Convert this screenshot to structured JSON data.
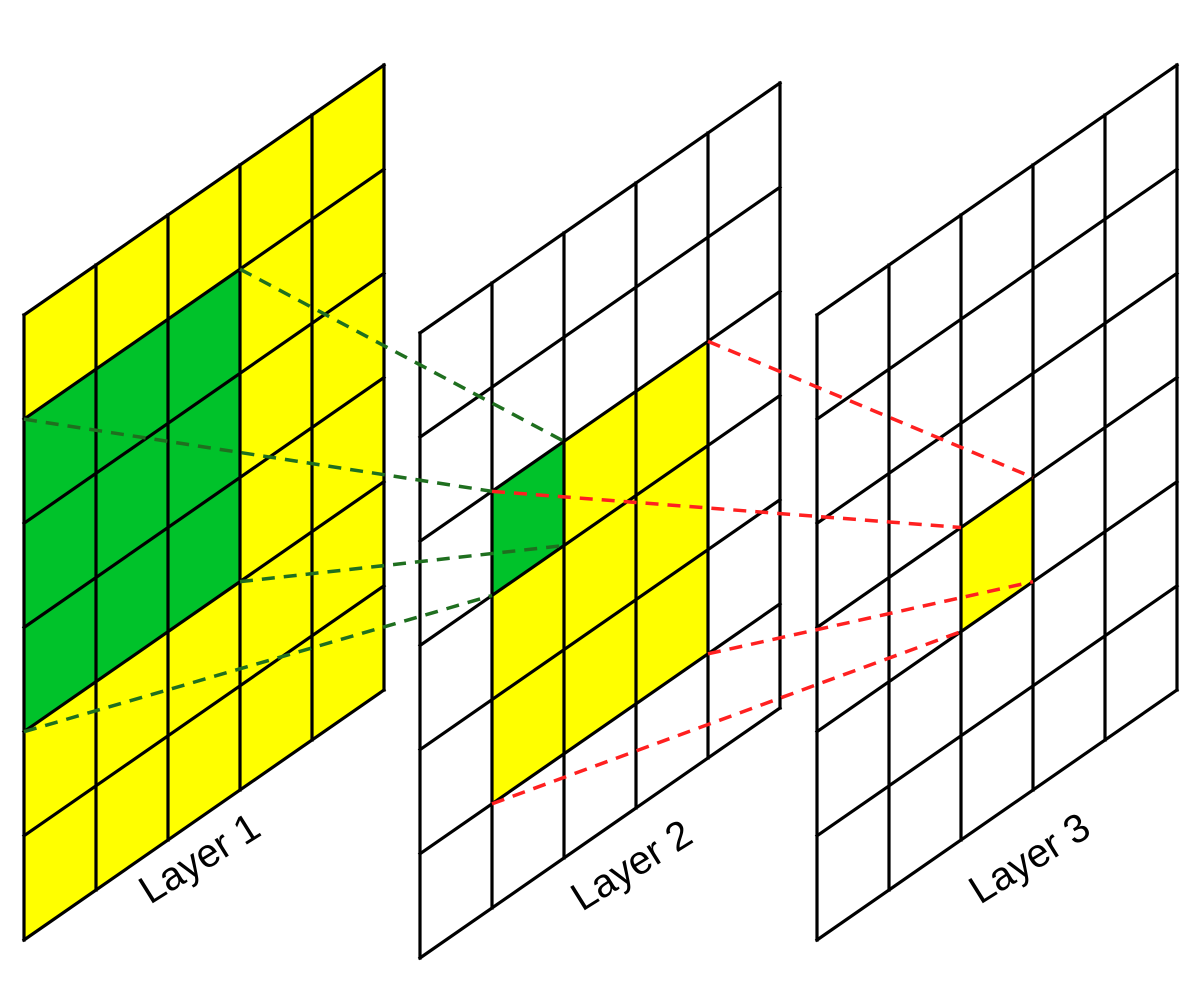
{
  "colors": {
    "background": "#ffffff",
    "grid_line": "#000000",
    "yellow_fill": "#ffff00",
    "green_fill": "#00c22a",
    "green_dash": "#1f6f1f",
    "red_dash": "#ff2020"
  },
  "layers": [
    {
      "label": "Layer 1",
      "grid": "5 columns x 6 rows",
      "highlight": "green 3x3 receptive region over yellow rest"
    },
    {
      "label": "Layer 2",
      "grid": "5 columns x 6 rows",
      "highlight": "3x3 yellow region with one green cell"
    },
    {
      "label": "Layer 3",
      "grid": "5 columns x 6 rows",
      "highlight": "one yellow cell"
    }
  ]
}
